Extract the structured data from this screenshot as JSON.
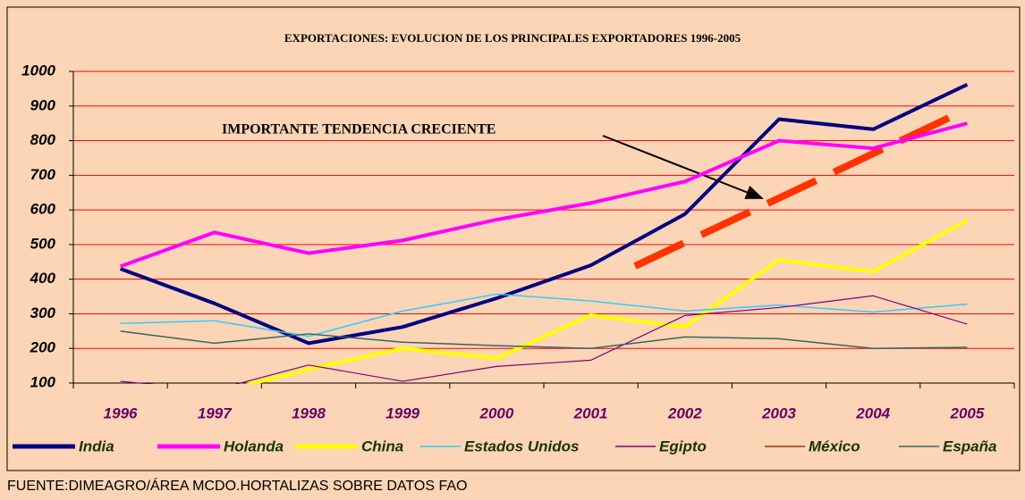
{
  "chart_data": {
    "type": "line",
    "title": "EXPORTACIONES: EVOLUCION DE LOS PRINCIPALES EXPORTADORES 1996-2005",
    "annotation": "IMPORTANTE TENDENCIA CRECIENTE",
    "source": "FUENTE:DIMEAGRO/ÁREA MCDO.HORTALIZAS SOBRE DATOS FAO",
    "categories": [
      "1996",
      "1997",
      "1998",
      "1999",
      "2000",
      "2001",
      "2002",
      "2003",
      "2004",
      "2005"
    ],
    "ylim": [
      100,
      1000
    ],
    "yticks": [
      100,
      200,
      300,
      400,
      500,
      600,
      700,
      800,
      900,
      1000
    ],
    "grid": true,
    "series": [
      {
        "name": "India",
        "color": "#000080",
        "values": [
          430,
          330,
          215,
          262,
          345,
          440,
          588,
          862,
          833,
          962
        ]
      },
      {
        "name": "Holanda",
        "color": "#ff00ff",
        "values": [
          437,
          535,
          475,
          512,
          572,
          620,
          682,
          800,
          778,
          850
        ]
      },
      {
        "name": "China",
        "color": "#ffff00",
        "values": [
          50,
          70,
          140,
          200,
          172,
          296,
          262,
          456,
          422,
          570
        ]
      },
      {
        "name": "Estados Unidos",
        "color": "#33ccff",
        "values": [
          272,
          280,
          235,
          308,
          357,
          337,
          308,
          325,
          305,
          328
        ]
      },
      {
        "name": "Egipto",
        "color": "#800080",
        "values": [
          105,
          80,
          152,
          105,
          148,
          166,
          295,
          318,
          352,
          270
        ]
      },
      {
        "name": "México",
        "color": "#993300",
        "values": [
          null,
          null,
          null,
          null,
          null,
          null,
          null,
          null,
          null,
          null
        ]
      },
      {
        "name": "España",
        "color": "#336666",
        "values": [
          250,
          215,
          242,
          218,
          208,
          200,
          233,
          228,
          200,
          203
        ]
      }
    ]
  }
}
